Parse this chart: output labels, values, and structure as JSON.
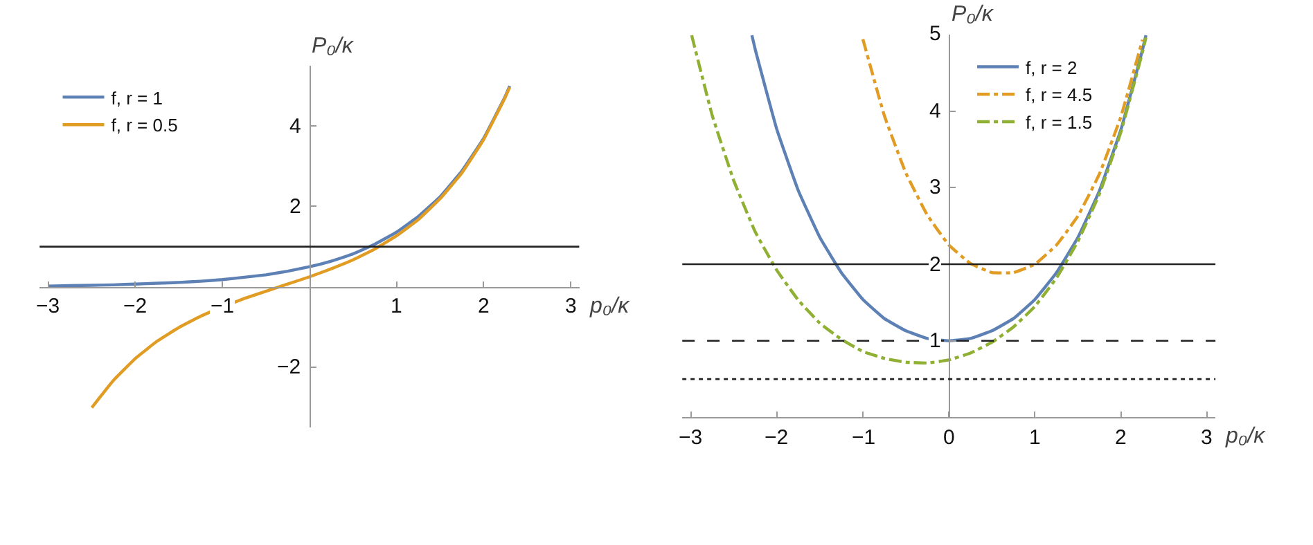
{
  "chart_data": [
    {
      "type": "line",
      "xlabel": "p₀/κ",
      "ylabel": "P₀/κ",
      "xlim": [
        -3.1,
        3.1
      ],
      "ylim": [
        -3.5,
        5.5
      ],
      "xticks": [
        -3,
        -2,
        -1,
        1,
        2,
        3
      ],
      "yticks": [
        -2,
        2,
        4
      ],
      "legend": "top left",
      "marker": "none",
      "ref_lines": [
        {
          "axis": "y",
          "value": 1,
          "color": "#222222",
          "line_style": "solid"
        }
      ],
      "series": [
        {
          "name": "f, r = 1",
          "color": "#5e81b5",
          "line_style": "solid",
          "x": [
            -3,
            -2.75,
            -2.5,
            -2.25,
            -2,
            -1.75,
            -1.5,
            -1.25,
            -1,
            -0.75,
            -0.5,
            -0.25,
            0,
            0.25,
            0.5,
            0.75,
            1,
            1.25,
            1.5,
            1.75,
            2,
            2.25,
            2.3
          ],
          "values": [
            0.02,
            0.03,
            0.04,
            0.05,
            0.07,
            0.09,
            0.11,
            0.14,
            0.18,
            0.24,
            0.3,
            0.39,
            0.5,
            0.64,
            0.82,
            1.06,
            1.36,
            1.75,
            2.24,
            2.88,
            3.69,
            4.74,
            4.99
          ]
        },
        {
          "name": "f, r = 0.5",
          "color": "#e19c24",
          "line_style": "solid",
          "x": [
            -2.5,
            -2.25,
            -2,
            -1.75,
            -1.5,
            -1.25,
            -1,
            -0.75,
            -0.5,
            -0.25,
            0,
            0.25,
            0.5,
            0.75,
            1,
            1.25,
            1.5,
            1.75,
            2,
            2.25,
            2.3
          ],
          "values": [
            -3.0,
            -2.32,
            -1.78,
            -1.35,
            -1.01,
            -0.73,
            -0.5,
            -0.29,
            -0.11,
            0.07,
            0.25,
            0.45,
            0.67,
            0.94,
            1.27,
            1.67,
            2.19,
            2.83,
            3.66,
            4.72,
            4.96
          ]
        }
      ]
    },
    {
      "type": "line",
      "xlabel": "p₀/κ",
      "ylabel": "P₀/κ",
      "xlim": [
        -3.1,
        3.1
      ],
      "ylim": [
        0,
        5
      ],
      "xticks": [
        -3,
        -2,
        -1,
        0,
        1,
        2,
        3
      ],
      "yticks": [
        1,
        2,
        3,
        4,
        5
      ],
      "legend": "top right",
      "marker": "none",
      "ref_lines": [
        {
          "axis": "y",
          "value": 2,
          "color": "#222222",
          "line_style": "solid"
        },
        {
          "axis": "y",
          "value": 1,
          "color": "#222222",
          "line_style": "dashed"
        },
        {
          "axis": "y",
          "value": 0.5,
          "color": "#222222",
          "line_style": "dotted"
        }
      ],
      "series": [
        {
          "name": "f, r = 2",
          "color": "#5e81b5",
          "line_style": "solid",
          "x": [
            -2.29,
            -2.25,
            -2,
            -1.75,
            -1.5,
            -1.25,
            -1,
            -0.75,
            -0.5,
            -0.25,
            0,
            0.25,
            0.5,
            0.75,
            1,
            1.25,
            1.5,
            1.75,
            2,
            2.25,
            2.29
          ],
          "values": [
            4.99,
            4.8,
            3.76,
            2.96,
            2.35,
            1.89,
            1.54,
            1.29,
            1.13,
            1.03,
            1,
            1.03,
            1.13,
            1.29,
            1.54,
            1.89,
            2.35,
            2.96,
            3.76,
            4.8,
            4.99
          ]
        },
        {
          "name": "f, r = 4.5",
          "color": "#e19c24",
          "line_style": "dashdot",
          "x": [
            -1,
            -0.75,
            -0.5,
            -0.25,
            0,
            0.25,
            0.5,
            0.75,
            1,
            1.25,
            1.5,
            1.75,
            2,
            2.25
          ],
          "values": [
            4.94,
            3.94,
            3.19,
            2.64,
            2.25,
            2.01,
            1.89,
            1.89,
            2.0,
            2.25,
            2.63,
            3.18,
            3.93,
            4.93
          ]
        },
        {
          "name": "f, r = 1.5",
          "color": "#8fb032",
          "line_style": "dashdot",
          "x": [
            -2.99,
            -2.75,
            -2.5,
            -2.25,
            -2,
            -1.75,
            -1.5,
            -1.25,
            -1,
            -0.75,
            -0.5,
            -0.25,
            0,
            0.25,
            0.5,
            0.75,
            1,
            1.25,
            1.5,
            1.75,
            2,
            2.25,
            2.29
          ],
          "values": [
            4.99,
            3.94,
            3.09,
            2.42,
            1.92,
            1.53,
            1.23,
            1.02,
            0.86,
            0.77,
            0.72,
            0.71,
            0.75,
            0.84,
            0.98,
            1.18,
            1.45,
            1.82,
            2.3,
            2.92,
            3.73,
            4.77,
            4.96
          ]
        }
      ]
    }
  ]
}
